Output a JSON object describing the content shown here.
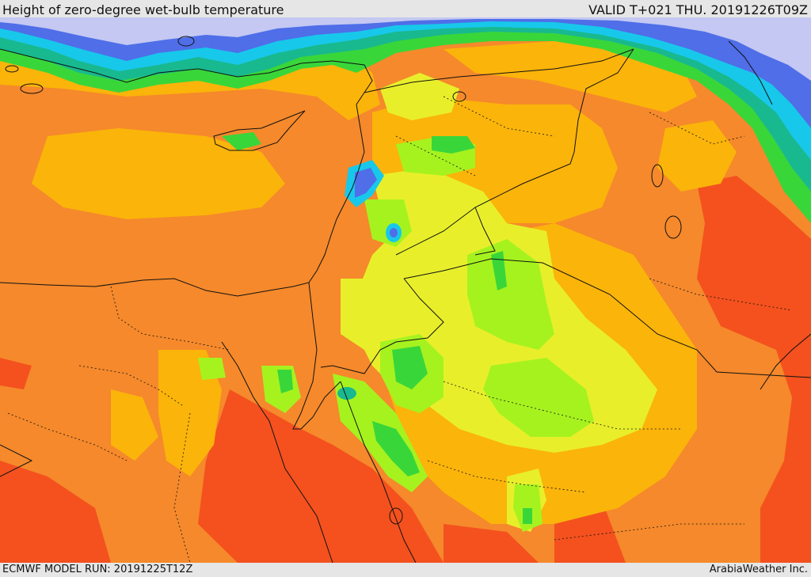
{
  "header": {
    "title": "Height of zero-degree wet-bulb temperature",
    "valid_time": "VALID T+021 THU. 20191226T09Z"
  },
  "footer": {
    "model_run": "ECMWF MODEL RUN: 20191225T12Z",
    "credit": "ArabiaWeather Inc."
  },
  "palette": {
    "deep_orange": "#f4511e",
    "orange": "#f5892b",
    "amber": "#fbb40a",
    "yellow": "#e8ef2a",
    "lime": "#a6f21f",
    "green": "#39d63a",
    "teal": "#18b98f",
    "cyan": "#18c8ea",
    "blue": "#4f6ee8",
    "lavender": "#c4c8f2",
    "border": "#111111"
  }
}
